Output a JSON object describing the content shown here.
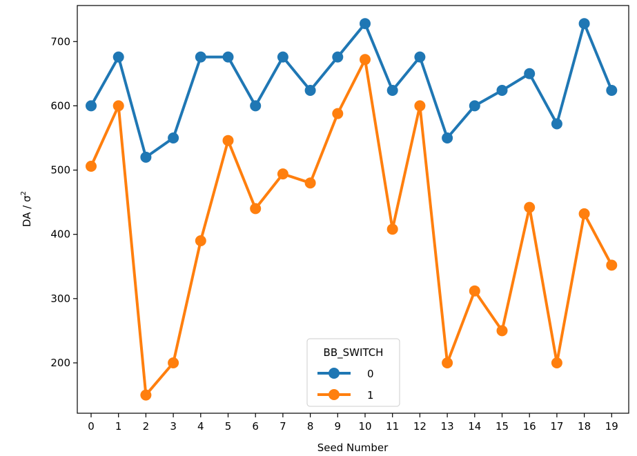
{
  "chart_data": {
    "type": "line",
    "title": "",
    "xlabel": "Seed Number",
    "ylabel": "DA / σ",
    "ylabel_superscript": "2",
    "x": [
      0,
      1,
      2,
      3,
      4,
      5,
      6,
      7,
      8,
      9,
      10,
      11,
      12,
      13,
      14,
      15,
      16,
      17,
      18,
      19
    ],
    "x_tick_labels": [
      "0",
      "1",
      "2",
      "3",
      "4",
      "5",
      "6",
      "7",
      "8",
      "9",
      "10",
      "11",
      "12",
      "13",
      "14",
      "15",
      "16",
      "17",
      "18",
      "19"
    ],
    "y_ticks": [
      200,
      300,
      400,
      500,
      600,
      700
    ],
    "y_tick_labels": [
      "200",
      "300",
      "400",
      "500",
      "600",
      "700"
    ],
    "ylim": [
      130,
      750
    ],
    "grid": false,
    "legend": {
      "title": "BB_SWITCH",
      "placement": "bottom-center"
    },
    "series": [
      {
        "name": "0",
        "color": "#1f77b4",
        "values": [
          600,
          676,
          520,
          550,
          676,
          676,
          600,
          676,
          624,
          676,
          728,
          624,
          676,
          550,
          600,
          624,
          650,
          572,
          728,
          624
        ]
      },
      {
        "name": "1",
        "color": "#ff7f0e",
        "values": [
          506,
          600,
          150,
          200,
          390,
          546,
          440,
          494,
          480,
          588,
          672,
          408,
          600,
          200,
          312,
          250,
          442,
          200,
          432,
          352
        ]
      }
    ]
  }
}
